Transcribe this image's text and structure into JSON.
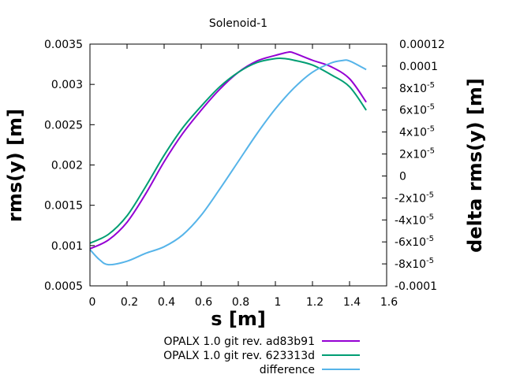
{
  "chart_data": {
    "type": "line",
    "title": "Solenoid-1",
    "xlabel": "s [m]",
    "ylabel": "rms(y) [m]",
    "y2label": "delta rms(y) [m]",
    "xlim": [
      0,
      1.6
    ],
    "ylim": [
      0.0005,
      0.0035
    ],
    "y2lim": [
      -0.0001,
      0.00012
    ],
    "grid": false,
    "legend_placement": "bottom",
    "x_ticks": [
      "0",
      "0.2",
      "0.4",
      "0.6",
      "0.8",
      "1",
      "1.2",
      "1.4",
      "1.6"
    ],
    "y_ticks": [
      "0.0005",
      "0.001",
      "0.0015",
      "0.002",
      "0.0025",
      "0.003",
      "0.0035"
    ],
    "y2_ticks": [
      {
        "base": "-0.0001",
        "exp": ""
      },
      {
        "base": "-8x10",
        "exp": "-5"
      },
      {
        "base": "-6x10",
        "exp": "-5"
      },
      {
        "base": "-4x10",
        "exp": "-5"
      },
      {
        "base": "-2x10",
        "exp": "-5"
      },
      {
        "base": "0",
        "exp": ""
      },
      {
        "base": "2x10",
        "exp": "-5"
      },
      {
        "base": "4x10",
        "exp": "-5"
      },
      {
        "base": "6x10",
        "exp": "-5"
      },
      {
        "base": "8x10",
        "exp": "-5"
      },
      {
        "base": "0.0001",
        "exp": ""
      },
      {
        "base": "0.00012",
        "exp": ""
      }
    ],
    "series": [
      {
        "name": "OPALX 1.0 git rev. ad83b91",
        "axis": "y",
        "color": "#9400d3",
        "x": [
          0,
          0.1,
          0.2,
          0.3,
          0.4,
          0.5,
          0.6,
          0.7,
          0.8,
          0.9,
          1.0,
          1.07,
          1.1,
          1.2,
          1.3,
          1.4,
          1.49
        ],
        "y": [
          0.00096,
          0.00107,
          0.00129,
          0.00164,
          0.00204,
          0.00239,
          0.00268,
          0.00294,
          0.00315,
          0.00329,
          0.00336,
          0.0034,
          0.00339,
          0.0033,
          0.00322,
          0.00307,
          0.00278
        ]
      },
      {
        "name": "OPALX 1.0 git rev. 623313d",
        "axis": "y",
        "color": "#009e73",
        "x": [
          0,
          0.1,
          0.2,
          0.3,
          0.4,
          0.5,
          0.6,
          0.7,
          0.8,
          0.9,
          1.0,
          1.05,
          1.1,
          1.2,
          1.3,
          1.4,
          1.49
        ],
        "y": [
          0.00103,
          0.00114,
          0.00137,
          0.00173,
          0.00212,
          0.00246,
          0.00273,
          0.00297,
          0.00315,
          0.00327,
          0.00332,
          0.00332,
          0.0033,
          0.00324,
          0.00312,
          0.00297,
          0.00268
        ]
      },
      {
        "name": "difference",
        "axis": "y2",
        "color": "#56b4e9",
        "x": [
          0,
          0.05,
          0.1,
          0.2,
          0.3,
          0.4,
          0.5,
          0.6,
          0.7,
          0.8,
          0.9,
          1.0,
          1.1,
          1.2,
          1.3,
          1.36,
          1.4,
          1.49
        ],
        "y": [
          -6.7e-05,
          -7.6e-05,
          -8.07e-05,
          -7.76e-05,
          -7.04e-05,
          -6.44e-05,
          -5.36e-05,
          -3.57e-05,
          -1.19e-05,
          1.32e-05,
          3.83e-05,
          6.1e-05,
          8e-05,
          9.44e-05,
          0.0001028,
          0.000105,
          0.0001047,
          9.68e-05
        ]
      }
    ]
  }
}
